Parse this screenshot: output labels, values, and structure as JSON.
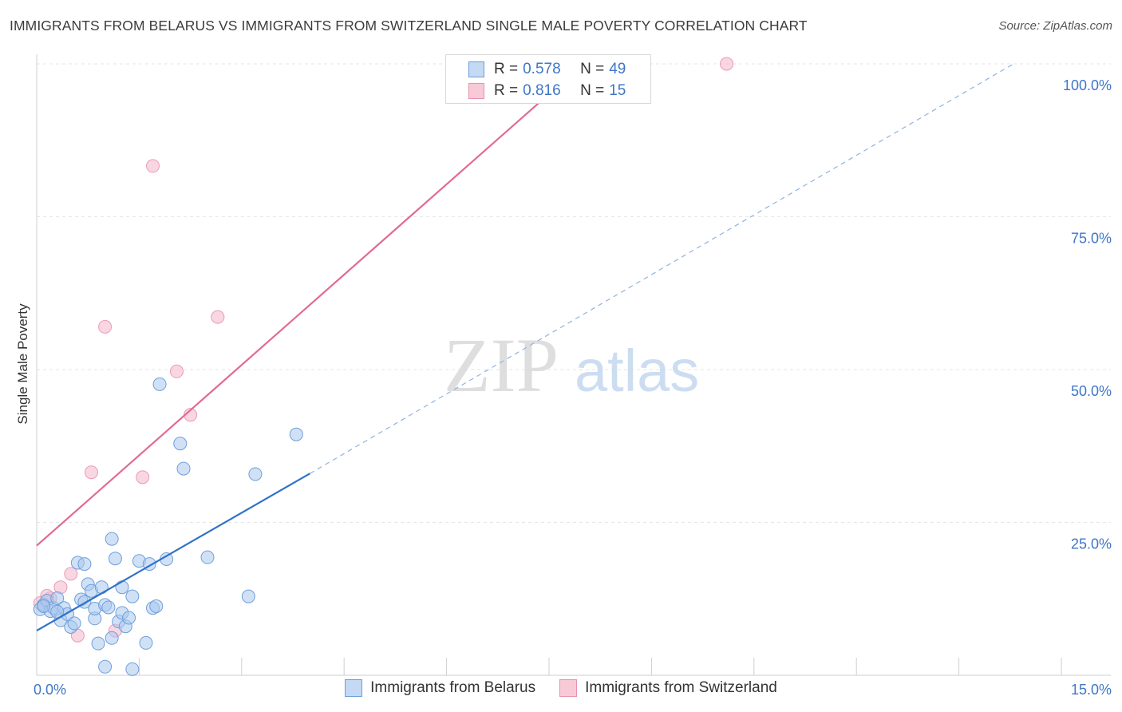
{
  "title": "IMMIGRANTS FROM BELARUS VS IMMIGRANTS FROM SWITZERLAND SINGLE MALE POVERTY CORRELATION CHART",
  "source": "Source: ZipAtlas.com",
  "watermark": {
    "zip": "ZIP",
    "atlas": "atlas"
  },
  "colors": {
    "blue": "#3f76c6",
    "blue_fill": "#a9c8ef",
    "blue_line": "#2f72c9",
    "pink": "#e06a8f",
    "pink_fill": "#f4b7ca",
    "pink_line": "#e26b90"
  },
  "legend": {
    "r_label": "R =",
    "n_label": "N =",
    "rows": [
      {
        "series": "Immigrants from Belarus",
        "r": "0.578",
        "n": "49"
      },
      {
        "series": "Immigrants from Switzerland",
        "r": "0.816",
        "n": "15"
      }
    ]
  },
  "chart_data": {
    "type": "scatter",
    "title": "IMMIGRANTS FROM BELARUS VS IMMIGRANTS FROM SWITZERLAND SINGLE MALE POVERTY CORRELATION CHART",
    "xlabel": "",
    "ylabel": "Single Male Poverty",
    "xlim": [
      0,
      15
    ],
    "ylim": [
      0,
      100
    ],
    "x_tick_labels": [
      {
        "value": 0,
        "label": "0.0%"
      },
      {
        "value": 15,
        "label": "15.0%"
      }
    ],
    "y_tick_labels": [
      {
        "value": 25,
        "label": "25.0%"
      },
      {
        "value": 50,
        "label": "50.0%"
      },
      {
        "value": 75,
        "label": "75.0%"
      },
      {
        "value": 100,
        "label": "100.0%"
      }
    ],
    "series": [
      {
        "name": "Immigrants from Belarus",
        "color": "#a9c8ef",
        "points": [
          [
            0.05,
            10.8
          ],
          [
            0.1,
            11.5
          ],
          [
            0.15,
            12.2
          ],
          [
            0.2,
            10.5
          ],
          [
            0.25,
            11.0
          ],
          [
            0.3,
            12.6
          ],
          [
            0.35,
            9.0
          ],
          [
            0.4,
            11.0
          ],
          [
            0.45,
            10.0
          ],
          [
            0.5,
            7.9
          ],
          [
            0.55,
            8.5
          ],
          [
            0.6,
            18.4
          ],
          [
            0.65,
            12.4
          ],
          [
            0.7,
            18.2
          ],
          [
            0.7,
            12.0
          ],
          [
            0.75,
            14.9
          ],
          [
            0.8,
            13.8
          ],
          [
            0.85,
            9.3
          ],
          [
            0.85,
            10.9
          ],
          [
            0.9,
            5.2
          ],
          [
            0.95,
            14.4
          ],
          [
            1.0,
            1.4
          ],
          [
            1.0,
            11.5
          ],
          [
            1.05,
            11.1
          ],
          [
            1.1,
            6.1
          ],
          [
            1.1,
            22.3
          ],
          [
            1.15,
            19.1
          ],
          [
            1.2,
            8.8
          ],
          [
            1.25,
            10.2
          ],
          [
            1.25,
            14.4
          ],
          [
            1.3,
            8.0
          ],
          [
            1.35,
            9.4
          ],
          [
            1.4,
            12.9
          ],
          [
            1.4,
            1.0
          ],
          [
            1.5,
            18.7
          ],
          [
            1.6,
            5.3
          ],
          [
            1.65,
            18.2
          ],
          [
            1.7,
            11.0
          ],
          [
            1.75,
            11.3
          ],
          [
            1.8,
            47.6
          ],
          [
            1.9,
            19.0
          ],
          [
            2.1,
            37.9
          ],
          [
            2.15,
            33.8
          ],
          [
            2.5,
            19.3
          ],
          [
            3.1,
            12.9
          ],
          [
            3.2,
            32.9
          ],
          [
            3.8,
            39.4
          ],
          [
            0.1,
            11.3
          ],
          [
            0.3,
            10.4
          ]
        ]
      },
      {
        "name": "Immigrants from Switzerland",
        "color": "#f4b7ca",
        "points": [
          [
            0.05,
            11.8
          ],
          [
            0.2,
            12.6
          ],
          [
            0.35,
            14.4
          ],
          [
            0.5,
            16.6
          ],
          [
            0.6,
            6.5
          ],
          [
            0.8,
            33.2
          ],
          [
            1.0,
            57.0
          ],
          [
            1.15,
            7.3
          ],
          [
            1.55,
            32.4
          ],
          [
            1.7,
            83.3
          ],
          [
            2.05,
            49.7
          ],
          [
            2.25,
            42.6
          ],
          [
            2.65,
            58.6
          ],
          [
            10.1,
            100.0
          ],
          [
            0.15,
            13.0
          ]
        ]
      }
    ],
    "trend_lines": [
      {
        "series": "Immigrants from Belarus",
        "solid_from": [
          0,
          7.3
        ],
        "solid_to": [
          4.0,
          33.0
        ],
        "dashed_to": [
          14.3,
          100.0
        ]
      },
      {
        "series": "Immigrants from Switzerland",
        "from": [
          0,
          21.2
        ],
        "to": [
          8.0,
          100.0
        ]
      }
    ]
  }
}
